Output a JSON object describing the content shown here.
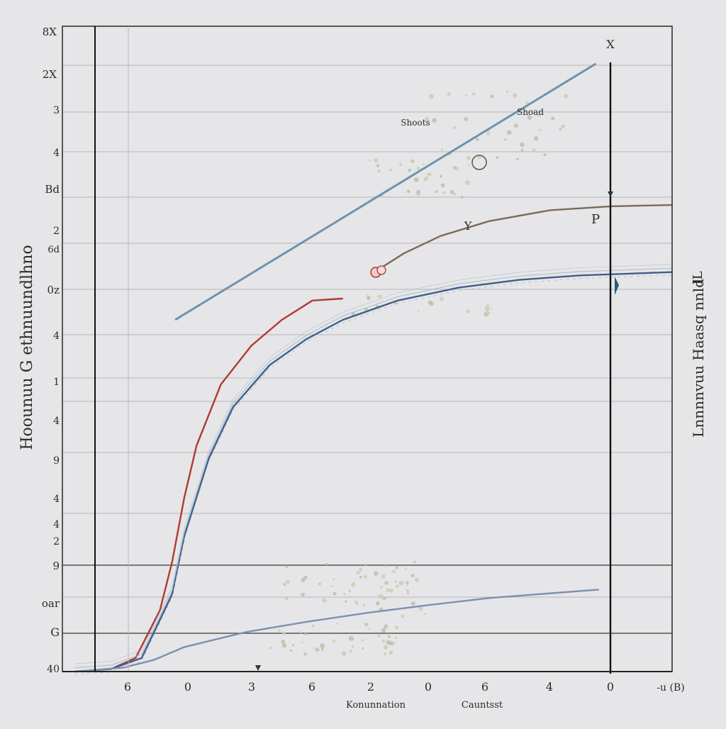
{
  "chart_data": {
    "type": "line",
    "title": "",
    "xlabel_left": "Konunnation",
    "xlabel_right": "Cauntsst",
    "ylabel_left": "Hoounuu G ethnuundlhno",
    "ylabel_right": "Lnnnnvuu Haasq nnld",
    "corner_right_label": "IL",
    "x_ticks": [
      "6",
      "0",
      "3",
      "6",
      "2",
      "0",
      "6",
      "4",
      "0",
      "-u (B)"
    ],
    "y_ticks": [
      "8X",
      "2X",
      "3",
      "4",
      "Bd",
      "2",
      "6d",
      "0z",
      "4",
      "1",
      "4",
      "9",
      "4",
      "4",
      "2",
      "9",
      "oar",
      "G",
      "40"
    ],
    "annotations": {
      "x_marker": "X",
      "y_marker": "Y",
      "p_marker": "P",
      "shoots": "Shoots",
      "shoad": "Shoad"
    },
    "xlim": [
      0,
      100
    ],
    "ylim": [
      0,
      100
    ],
    "series": [
      {
        "name": "steep-blue-line",
        "color": "#6f93ab",
        "x": [
          18.5,
          87.5
        ],
        "y": [
          54.5,
          94.2
        ]
      },
      {
        "name": "brown-curve",
        "color": "#7a6a5a",
        "x": [
          51,
          56,
          62,
          70,
          80,
          90,
          100
        ],
        "y": [
          61.8,
          64.8,
          67.5,
          69.8,
          71.5,
          72.1,
          72.3
        ]
      },
      {
        "name": "red-curve",
        "color": "#b03a35",
        "x": [
          2,
          8,
          12,
          16,
          18,
          20,
          22,
          26,
          31,
          36,
          41,
          46
        ],
        "y": [
          0,
          0.4,
          2.1,
          9.5,
          17,
          27,
          35,
          44.5,
          50.5,
          54.5,
          57.5,
          57.8
        ]
      },
      {
        "name": "blue-curve",
        "color": "#3f5f8a",
        "x": [
          2,
          8,
          13,
          18,
          20,
          24,
          28,
          34,
          40,
          46,
          55,
          65,
          75,
          85,
          100
        ],
        "y": [
          0,
          0.4,
          2.1,
          12,
          21,
          33,
          41,
          47.5,
          51.5,
          54.5,
          57.5,
          59.5,
          60.7,
          61.4,
          61.9
        ]
      },
      {
        "name": "lower-bundle-line",
        "color": "#7d8fb0",
        "x": [
          2,
          10,
          15,
          20,
          30,
          40,
          50,
          60,
          70,
          88
        ],
        "y": [
          0,
          0.6,
          1.8,
          3.8,
          6.1,
          7.7,
          9.1,
          10.3,
          11.4,
          12.7
        ]
      }
    ]
  }
}
